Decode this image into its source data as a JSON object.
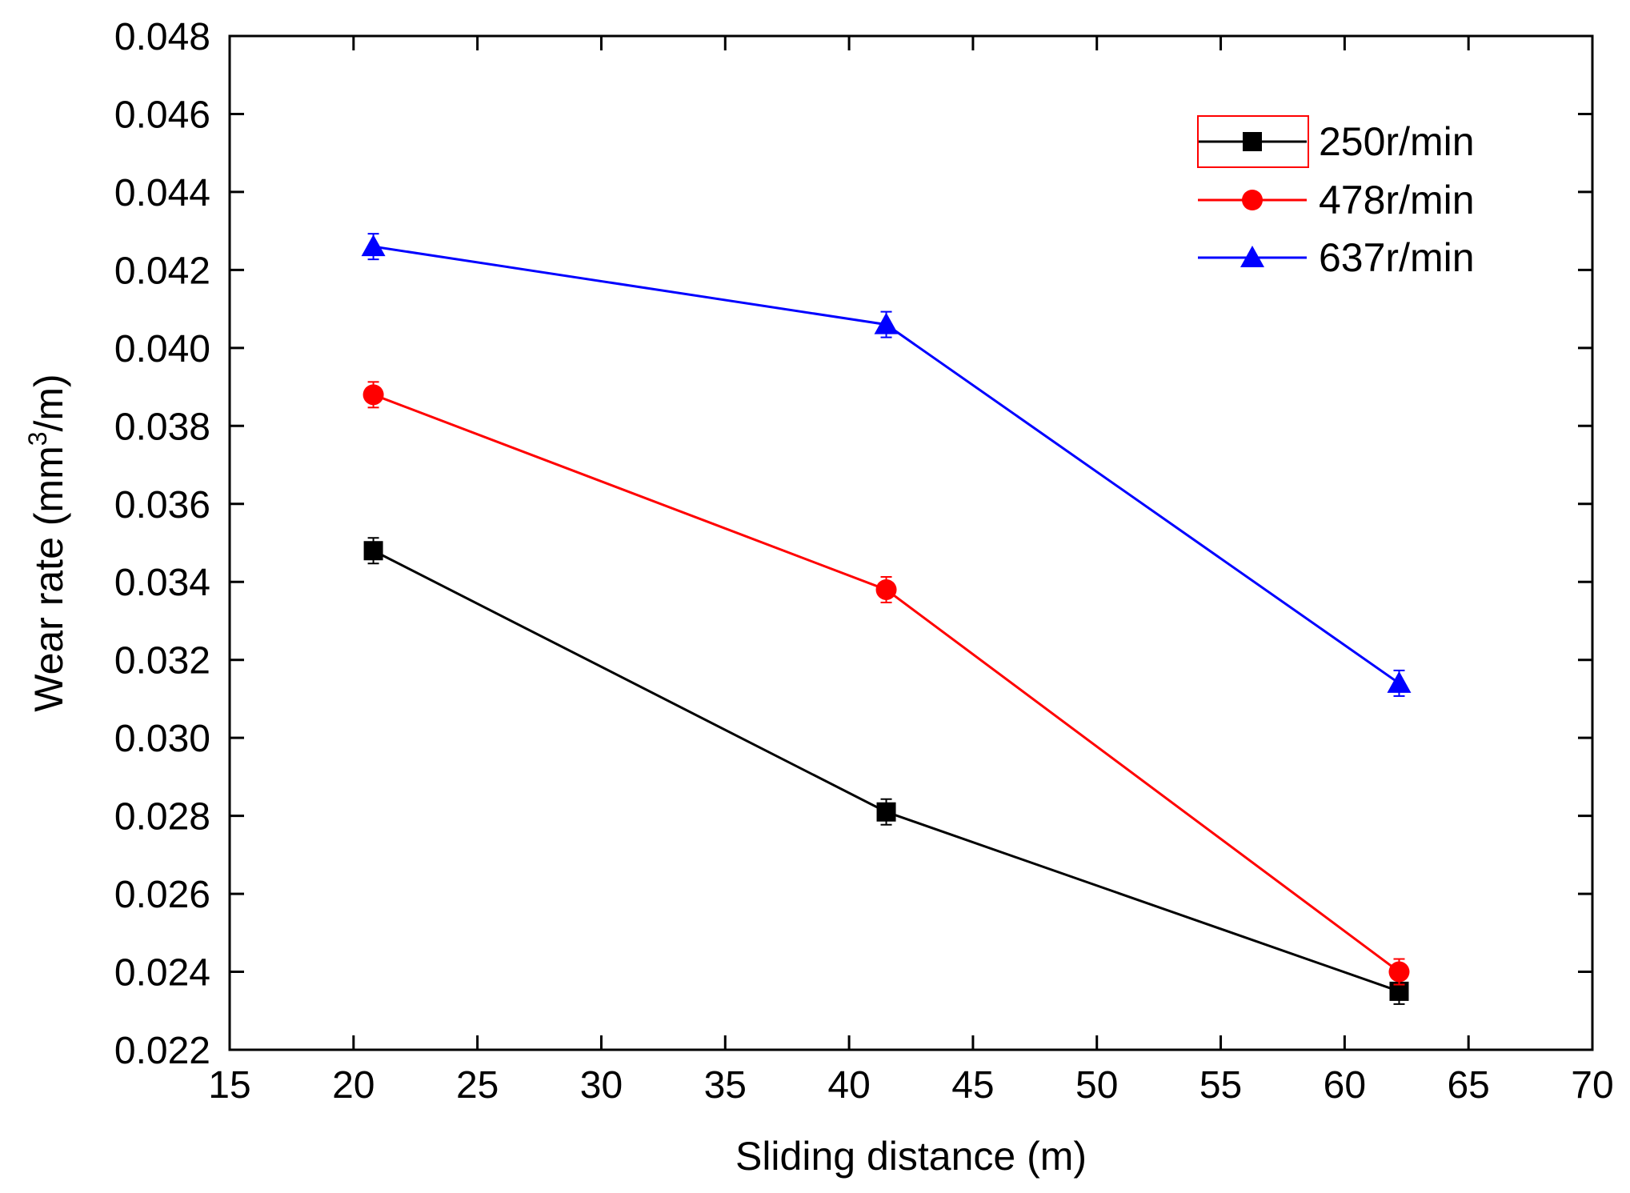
{
  "chart_data": {
    "type": "line",
    "title": "",
    "xlabel": "Sliding distance (m)",
    "ylabel_parts": {
      "before": "Wear rate (mm",
      "superscript": "3",
      "after": "/m)"
    },
    "xlim": [
      15,
      70
    ],
    "ylim": [
      0.022,
      0.048
    ],
    "x_ticks": [
      "15",
      "20",
      "25",
      "30",
      "35",
      "40",
      "45",
      "50",
      "55",
      "60",
      "65",
      "70"
    ],
    "x_tick_values": [
      15,
      20,
      25,
      30,
      35,
      40,
      45,
      50,
      55,
      60,
      65,
      70
    ],
    "y_ticks": [
      "0.022",
      "0.024",
      "0.026",
      "0.028",
      "0.030",
      "0.032",
      "0.034",
      "0.036",
      "0.038",
      "0.040",
      "0.042",
      "0.044",
      "0.046",
      "0.048"
    ],
    "y_tick_values": [
      0.022,
      0.024,
      0.026,
      0.028,
      0.03,
      0.032,
      0.034,
      0.036,
      0.038,
      0.04,
      0.042,
      0.044,
      0.046,
      0.048
    ],
    "grid": false,
    "legend_position": "top-right",
    "x": [
      20.8,
      41.5,
      62.2
    ],
    "series": [
      {
        "name": "250r/min",
        "color": "#000000",
        "marker": "square",
        "values": [
          0.0348,
          0.0281,
          0.0235
        ]
      },
      {
        "name": "478r/min",
        "color": "#ff0000",
        "marker": "circle",
        "values": [
          0.0388,
          0.0338,
          0.024
        ]
      },
      {
        "name": "637r/min",
        "color": "#0000ff",
        "marker": "triangle",
        "values": [
          0.0426,
          0.0406,
          0.0314
        ]
      }
    ]
  }
}
